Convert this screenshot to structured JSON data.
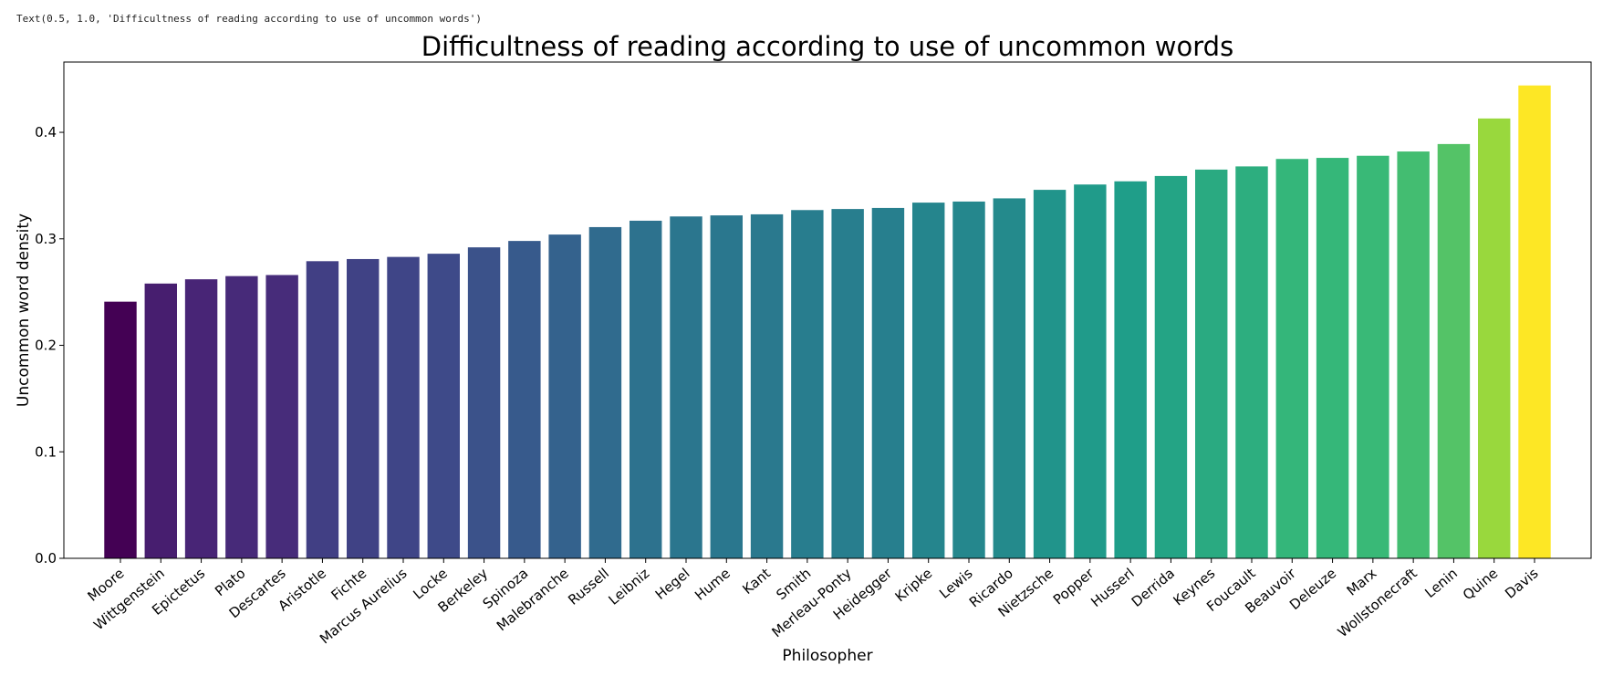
{
  "notebook_output": "Text(0.5, 1.0, 'Difficultness of reading according to use of uncommon words')",
  "chart_data": {
    "type": "bar",
    "title": "Difficultness of reading according to use of uncommon words",
    "xlabel": "Philosopher",
    "ylabel": "Uncommon word density",
    "ylim": [
      0,
      0.466
    ],
    "yticks": [
      "0.0",
      "0.1",
      "0.2",
      "0.3",
      "0.4"
    ],
    "grid": false,
    "colormap": "viridis",
    "categories": [
      "Moore",
      "Wittgenstein",
      "Epictetus",
      "Plato",
      "Descartes",
      "Aristotle",
      "Fichte",
      "Marcus Aurelius",
      "Locke",
      "Berkeley",
      "Spinoza",
      "Malebranche",
      "Russell",
      "Leibniz",
      "Hegel",
      "Hume",
      "Kant",
      "Smith",
      "Merleau-Ponty",
      "Heidegger",
      "Kripke",
      "Lewis",
      "Ricardo",
      "Nietzsche",
      "Popper",
      "Husserl",
      "Derrida",
      "Keynes",
      "Foucault",
      "Beauvoir",
      "Deleuze",
      "Marx",
      "Wollstonecraft",
      "Lenin",
      "Quine",
      "Davis"
    ],
    "values": [
      0.241,
      0.258,
      0.262,
      0.265,
      0.266,
      0.279,
      0.281,
      0.283,
      0.286,
      0.292,
      0.298,
      0.304,
      0.311,
      0.317,
      0.321,
      0.322,
      0.323,
      0.327,
      0.328,
      0.329,
      0.334,
      0.335,
      0.338,
      0.346,
      0.351,
      0.354,
      0.359,
      0.365,
      0.368,
      0.375,
      0.376,
      0.378,
      0.382,
      0.389,
      0.413,
      0.444
    ]
  }
}
